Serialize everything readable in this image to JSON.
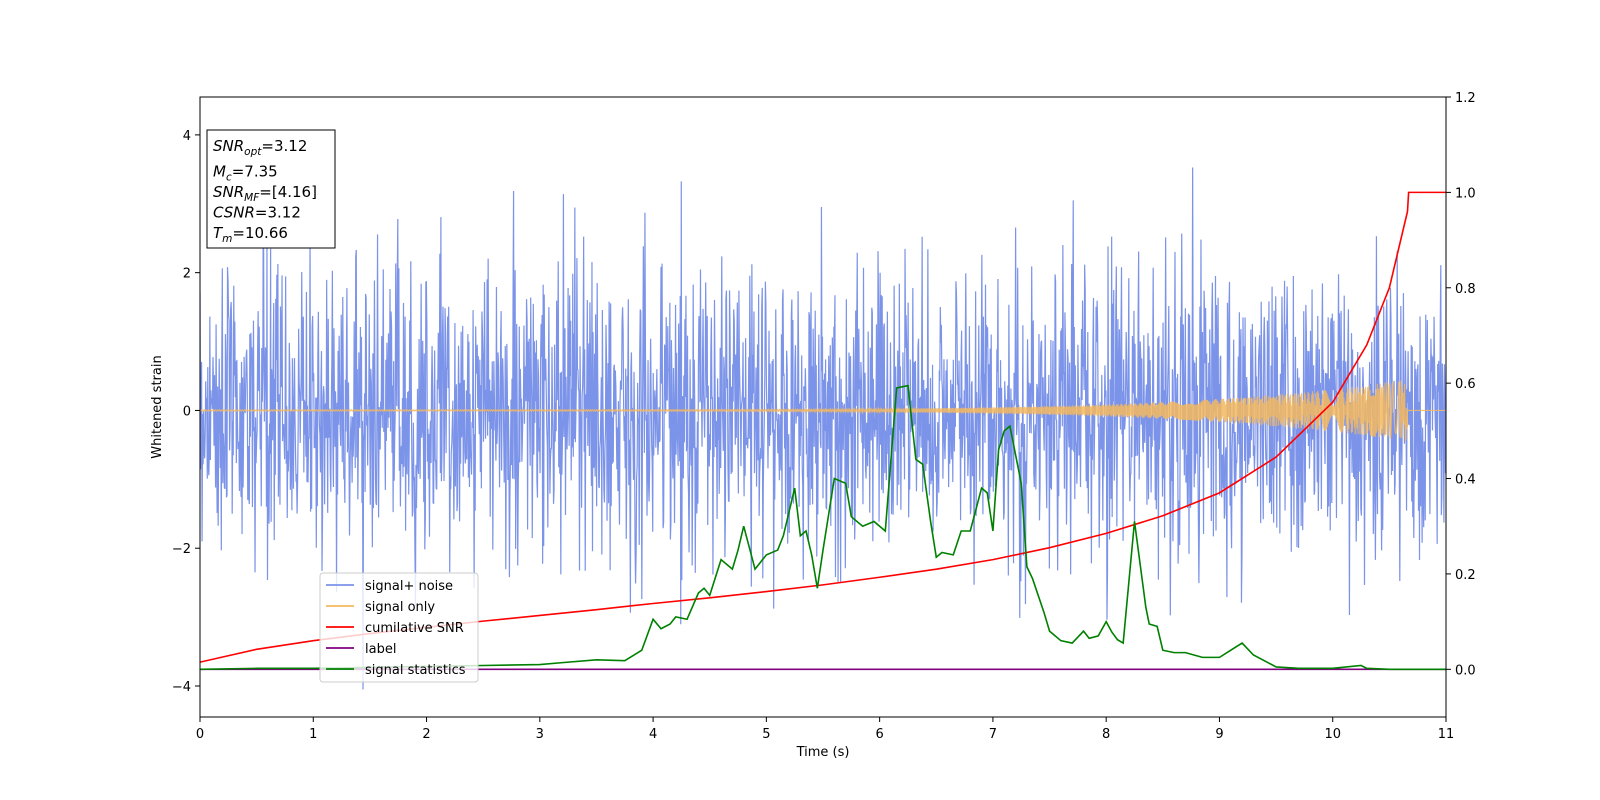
{
  "chart_data": {
    "type": "line",
    "xlabel": "Time (s)",
    "ylabel_left": "Whitened strain",
    "ylabel_right": "",
    "xlim": [
      0,
      11
    ],
    "ylim_left": [
      -4.45,
      4.55
    ],
    "ylim_right": [
      -0.1,
      1.2
    ],
    "xticks": [
      0,
      1,
      2,
      3,
      4,
      5,
      6,
      7,
      8,
      9,
      10,
      11
    ],
    "xtick_labels": [
      "0",
      "1",
      "2",
      "3",
      "4",
      "5",
      "6",
      "7",
      "8",
      "9",
      "10",
      "11"
    ],
    "yticks_left": [
      -4,
      -2,
      0,
      2,
      4
    ],
    "ytick_labels_left": [
      "−4",
      "−2",
      "0",
      "2",
      "4"
    ],
    "yticks_right": [
      0.0,
      0.2,
      0.4,
      0.6,
      0.8,
      1.0,
      1.2
    ],
    "ytick_labels_right": [
      "0.0",
      "0.2",
      "0.4",
      "0.6",
      "0.8",
      "1.0",
      "1.2"
    ],
    "grid": false,
    "legend_position": "lower-left",
    "annotation": {
      "lines": [
        {
          "var": "SNR",
          "sub": "opt",
          "rest": "=3.12"
        },
        {
          "var": "M",
          "sub": "c",
          "rest": "=7.35"
        },
        {
          "var": "SNR",
          "sub": "MF",
          "rest": "=[4.16]"
        },
        {
          "var": "CSNR",
          "sub": "",
          "rest": "=3.12"
        },
        {
          "var": "T",
          "sub": "m",
          "rest": "=10.66"
        }
      ]
    },
    "series": [
      {
        "name": "signal+ noise",
        "axis": "left",
        "color": "#7b93e8",
        "style": "noise",
        "mean": 0.0,
        "std": 1.05,
        "min": -4.05,
        "max": 4.15
      },
      {
        "name": "signal only",
        "axis": "left",
        "color": "#f5b95e",
        "style": "chirp",
        "amplitude_start": 0.01,
        "amplitude_end": 0.45,
        "merger_time": 10.66
      },
      {
        "name": "cumilative SNR",
        "axis": "right",
        "color": "#ff0000",
        "style": "line",
        "x": [
          0,
          0.5,
          1,
          1.5,
          2,
          2.5,
          3,
          3.5,
          4,
          4.5,
          5,
          5.5,
          6,
          6.5,
          7,
          7.5,
          8,
          8.5,
          9,
          9.5,
          10,
          10.3,
          10.5,
          10.66,
          10.67,
          11
        ],
        "y": [
          0.015,
          0.042,
          0.06,
          0.075,
          0.088,
          0.101,
          0.113,
          0.125,
          0.138,
          0.15,
          0.163,
          0.177,
          0.193,
          0.21,
          0.23,
          0.255,
          0.285,
          0.322,
          0.37,
          0.445,
          0.56,
          0.68,
          0.8,
          0.96,
          1.0,
          1.0
        ]
      },
      {
        "name": "label",
        "axis": "right",
        "color": "#800080",
        "style": "line",
        "x": [
          0,
          11
        ],
        "y": [
          0.0,
          0.0
        ]
      },
      {
        "name": "signal statistics",
        "axis": "right",
        "color": "#008000",
        "style": "line",
        "x": [
          0,
          0.5,
          1,
          1.5,
          2,
          2.5,
          3,
          3.2,
          3.5,
          3.75,
          3.9,
          4.0,
          4.07,
          4.15,
          4.2,
          4.3,
          4.4,
          4.45,
          4.5,
          4.6,
          4.7,
          4.75,
          4.8,
          4.9,
          5.0,
          5.1,
          5.15,
          5.25,
          5.3,
          5.35,
          5.4,
          5.45,
          5.5,
          5.6,
          5.7,
          5.75,
          5.85,
          5.95,
          6.05,
          6.15,
          6.25,
          6.32,
          6.38,
          6.45,
          6.5,
          6.55,
          6.65,
          6.72,
          6.8,
          6.9,
          6.95,
          7.0,
          7.05,
          7.1,
          7.15,
          7.25,
          7.3,
          7.35,
          7.45,
          7.5,
          7.6,
          7.7,
          7.8,
          7.85,
          7.93,
          8.0,
          8.05,
          8.1,
          8.15,
          8.25,
          8.35,
          8.38,
          8.45,
          8.5,
          8.6,
          8.7,
          8.85,
          9.0,
          9.1,
          9.2,
          9.3,
          9.5,
          9.7,
          10.0,
          10.25,
          10.3,
          10.5,
          11
        ],
        "y": [
          0.0,
          0.002,
          0.002,
          0.004,
          0.006,
          0.008,
          0.01,
          0.014,
          0.02,
          0.018,
          0.04,
          0.105,
          0.085,
          0.095,
          0.11,
          0.105,
          0.16,
          0.17,
          0.155,
          0.23,
          0.21,
          0.25,
          0.3,
          0.21,
          0.24,
          0.25,
          0.28,
          0.38,
          0.28,
          0.29,
          0.24,
          0.17,
          0.25,
          0.4,
          0.39,
          0.32,
          0.3,
          0.31,
          0.29,
          0.59,
          0.595,
          0.44,
          0.43,
          0.31,
          0.235,
          0.245,
          0.24,
          0.29,
          0.29,
          0.38,
          0.37,
          0.29,
          0.46,
          0.5,
          0.51,
          0.39,
          0.215,
          0.19,
          0.12,
          0.08,
          0.06,
          0.055,
          0.08,
          0.065,
          0.07,
          0.1,
          0.078,
          0.062,
          0.055,
          0.31,
          0.13,
          0.095,
          0.09,
          0.04,
          0.035,
          0.035,
          0.025,
          0.025,
          0.04,
          0.055,
          0.03,
          0.005,
          0.002,
          0.002,
          0.008,
          0.002,
          0.0,
          0.0
        ]
      }
    ]
  }
}
